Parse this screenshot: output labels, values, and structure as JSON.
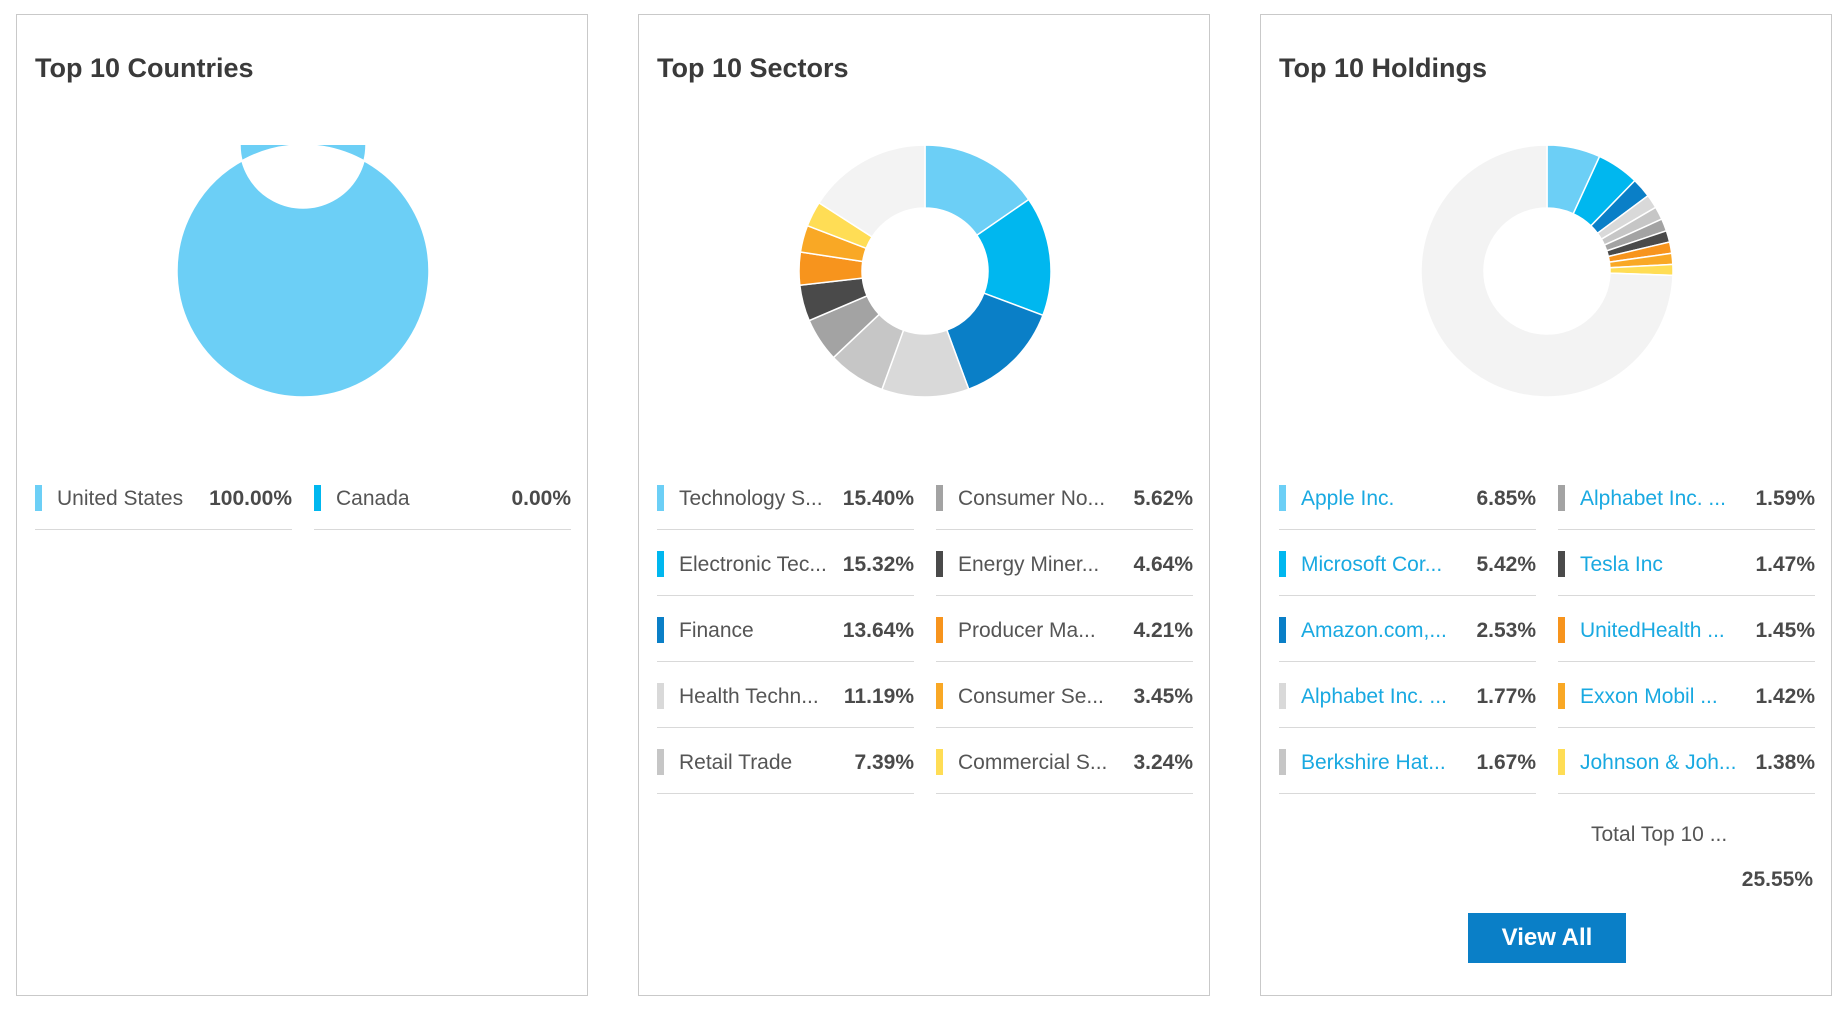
{
  "cards": {
    "countries": {
      "title": "Top 10 Countries"
    },
    "sectors": {
      "title": "Top 10 Sectors"
    },
    "holdings": {
      "title": "Top 10 Holdings",
      "total_label": "Total Top 10 ...",
      "total_value": "25.55%",
      "view_all_label": "View All"
    }
  },
  "chart_data": [
    {
      "type": "pie",
      "title": "Top 10 Countries",
      "donut": true,
      "categories": [
        "United States",
        "Canada"
      ],
      "values": [
        100.0,
        0.0
      ],
      "labels": [
        "United States",
        "Canada"
      ],
      "value_labels": [
        "100.00%",
        "0.00%"
      ],
      "colors": [
        "#6ccff6",
        "#00b7ef"
      ]
    },
    {
      "type": "pie",
      "title": "Top 10 Sectors",
      "donut": true,
      "categories": [
        "Technology Services",
        "Electronic Technology",
        "Finance",
        "Health Technology",
        "Retail Trade",
        "Consumer Non-Durables",
        "Energy Minerals",
        "Producer Manufacturing",
        "Consumer Services",
        "Commercial Services"
      ],
      "values": [
        15.4,
        15.32,
        13.64,
        11.19,
        7.39,
        5.62,
        4.64,
        4.21,
        3.45,
        3.24
      ],
      "labels": [
        "Technology S...",
        "Electronic Tec...",
        "Finance",
        "Health Techn...",
        "Retail Trade",
        "Consumer No...",
        "Energy Miner...",
        "Producer Ma...",
        "Consumer Se...",
        "Commercial S..."
      ],
      "value_labels": [
        "15.40%",
        "15.32%",
        "13.64%",
        "11.19%",
        "7.39%",
        "5.62%",
        "4.64%",
        "4.21%",
        "3.45%",
        "3.24%"
      ],
      "colors": [
        "#6ccff6",
        "#00b7ef",
        "#0a7fc7",
        "#d9d9d9",
        "#c6c6c6",
        "#a3a3a3",
        "#4a4a4a",
        "#f7941d",
        "#f9a825",
        "#ffdd55"
      ],
      "remainder_color": "#f3f3f3"
    },
    {
      "type": "pie",
      "title": "Top 10 Holdings",
      "donut": true,
      "categories": [
        "Apple Inc.",
        "Microsoft Corporation",
        "Amazon.com, Inc.",
        "Alphabet Inc. Class A",
        "Berkshire Hathaway",
        "Alphabet Inc. Class C",
        "Tesla Inc",
        "UnitedHealth Group",
        "Exxon Mobil",
        "Johnson & Johnson"
      ],
      "values": [
        6.85,
        5.42,
        2.53,
        1.77,
        1.67,
        1.59,
        1.47,
        1.45,
        1.42,
        1.38
      ],
      "labels": [
        "Apple Inc.",
        "Microsoft Cor...",
        "Amazon.com,...",
        "Alphabet Inc. ...",
        "Berkshire Hat...",
        "Alphabet Inc. ...",
        "Tesla Inc",
        "UnitedHealth ...",
        "Exxon Mobil ...",
        "Johnson & Joh..."
      ],
      "value_labels": [
        "6.85%",
        "5.42%",
        "2.53%",
        "1.77%",
        "1.67%",
        "1.59%",
        "1.47%",
        "1.45%",
        "1.42%",
        "1.38%"
      ],
      "colors": [
        "#6ccff6",
        "#00b7ef",
        "#0a7fc7",
        "#d9d9d9",
        "#c6c6c6",
        "#a3a3a3",
        "#4a4a4a",
        "#f7941d",
        "#f9a825",
        "#ffdd55"
      ],
      "remainder_color": "#f3f3f3"
    }
  ]
}
